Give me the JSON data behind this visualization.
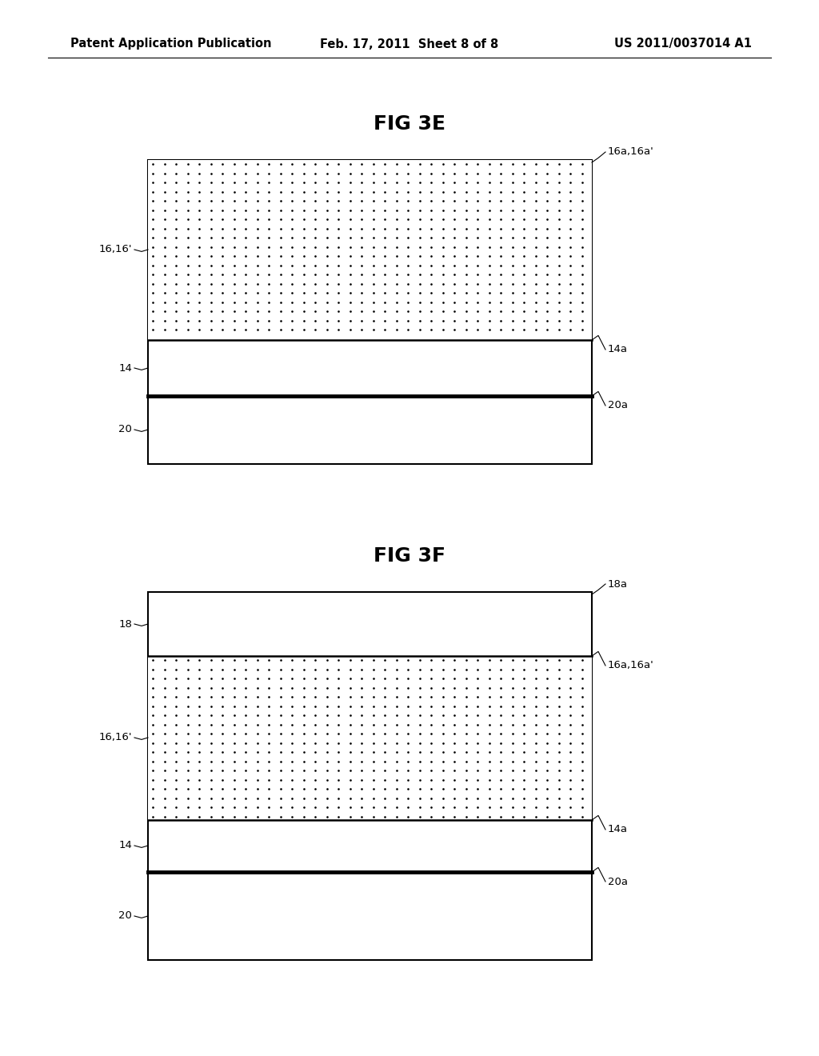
{
  "background_color": "#ffffff",
  "header_left": "Patent Application Publication",
  "header_center": "Feb. 17, 2011  Sheet 8 of 8",
  "header_right": "US 2011/0037014 A1",
  "header_fontsize": 10.5,
  "fig3e_title": "FIG 3E",
  "fig3e_title_fontsize": 18,
  "fig3f_title": "FIG 3F",
  "fig3f_title_fontsize": 18,
  "label_fontsize": 9.5
}
